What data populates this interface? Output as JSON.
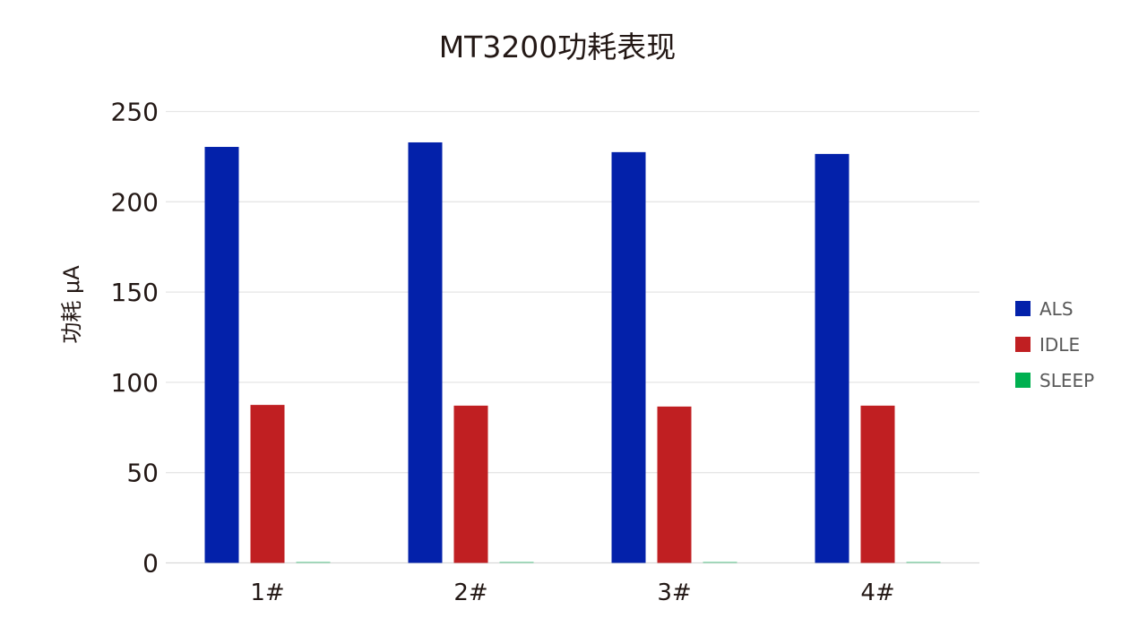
{
  "chart_data": {
    "type": "bar",
    "title": "MT3200功耗表现",
    "xlabel": "",
    "ylabel": "功耗 μA",
    "categories": [
      "1#",
      "2#",
      "3#",
      "4#"
    ],
    "series": [
      {
        "name": "ALS",
        "color": "#0321AA",
        "values": [
          230.4,
          232.9,
          227.5,
          226.5
        ]
      },
      {
        "name": "IDLE",
        "color": "#C01F22",
        "values": [
          87.5,
          87.1,
          86.6,
          87.1
        ]
      },
      {
        "name": "SLEEP",
        "color": "#00B050",
        "values": [
          0.6,
          0.6,
          0.6,
          0.6
        ]
      }
    ],
    "ylim": [
      0,
      250
    ],
    "yticks": [
      0,
      50,
      100,
      150,
      200,
      250
    ],
    "grid": true,
    "legend": "right"
  }
}
